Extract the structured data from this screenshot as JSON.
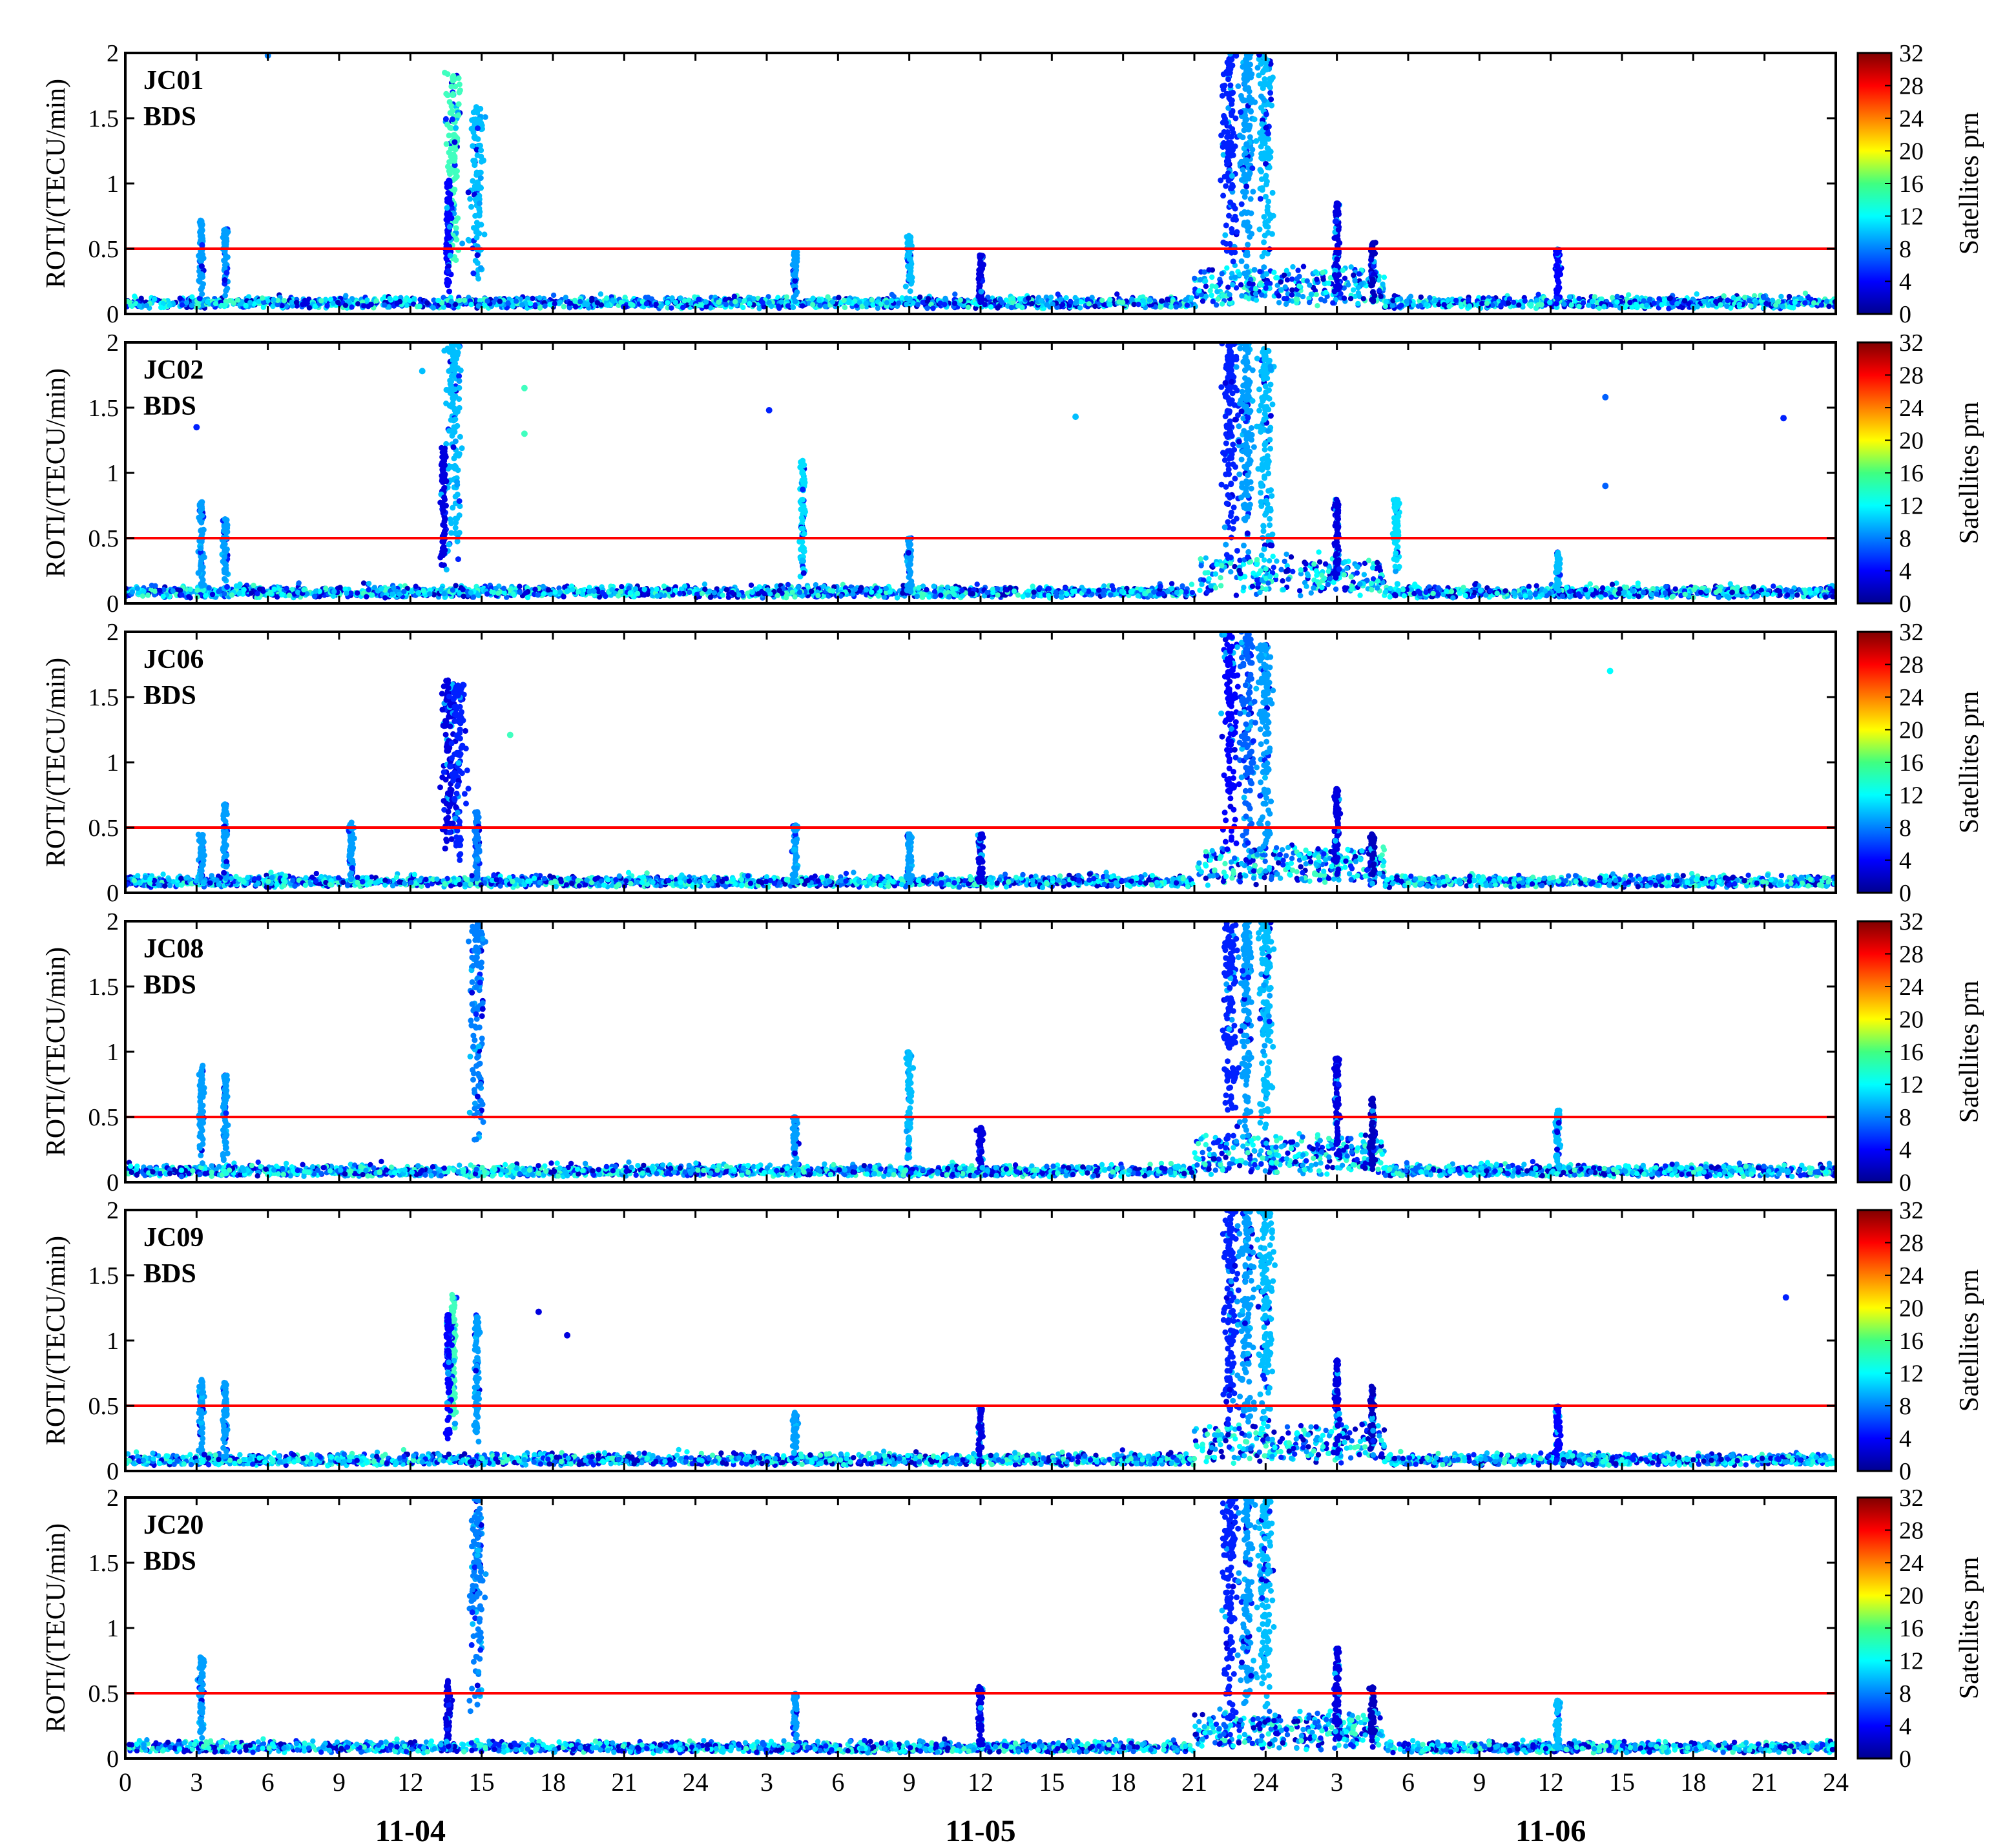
{
  "chart_data": {
    "type": "scatter",
    "threshold": 0.5,
    "threshold_color": "#ff0000",
    "x_unit": "hours (3 days, 72 h)",
    "xlim": [
      0,
      72
    ],
    "ylim": [
      0,
      2
    ],
    "ylabel": "ROTI/(TECU/min)",
    "xtick_labels": [
      "0",
      "3",
      "6",
      "9",
      "12",
      "15",
      "18",
      "21",
      "24",
      "3",
      "6",
      "9",
      "12",
      "15",
      "18",
      "21",
      "24",
      "3",
      "6",
      "9",
      "12",
      "15",
      "18",
      "21",
      "24"
    ],
    "ytick_labels": [
      "0",
      "0.5",
      "1",
      "1.5",
      "2"
    ],
    "date_labels": [
      "11-04",
      "11-05",
      "11-06"
    ],
    "colorbar": {
      "label": "Satellites prn",
      "range": [
        0,
        32
      ],
      "ticks": [
        "0",
        "4",
        "8",
        "12",
        "16",
        "20",
        "24",
        "28",
        "32"
      ],
      "colormap": "jet"
    },
    "panels": [
      {
        "station": "JC01",
        "system": "BDS",
        "features": [
          {
            "x": 3.2,
            "peak": 0.72,
            "prn": 9
          },
          {
            "x": 4.2,
            "peak": 0.65,
            "prn": 9
          },
          {
            "x": 13.8,
            "peak": 1.85,
            "prn": 14
          },
          {
            "x": 13.6,
            "peak": 1.05,
            "prn": 4
          },
          {
            "x": 14.8,
            "peak": 1.6,
            "prn": 10
          },
          {
            "x": 28.2,
            "peak": 0.48,
            "prn": 9
          },
          {
            "x": 33.0,
            "peak": 0.6,
            "prn": 10
          },
          {
            "x": 36.0,
            "peak": 0.45,
            "prn": 3
          },
          {
            "x": 46.5,
            "peak": 2.0,
            "prn": 5
          },
          {
            "x": 47.2,
            "peak": 2.0,
            "prn": 9
          },
          {
            "x": 48.0,
            "peak": 2.0,
            "prn": 10
          },
          {
            "x": 51.0,
            "peak": 0.85,
            "prn": 3
          },
          {
            "x": 52.5,
            "peak": 0.55,
            "prn": 2
          },
          {
            "x": 60.3,
            "peak": 0.5,
            "prn": 4
          }
        ],
        "outliers": [
          {
            "x": 6.0,
            "y": 1.98,
            "prn": 8
          }
        ]
      },
      {
        "station": "JC02",
        "system": "BDS",
        "features": [
          {
            "x": 3.2,
            "peak": 0.78,
            "prn": 9
          },
          {
            "x": 4.2,
            "peak": 0.65,
            "prn": 9
          },
          {
            "x": 13.8,
            "peak": 2.0,
            "prn": 10
          },
          {
            "x": 13.4,
            "peak": 1.2,
            "prn": 3
          },
          {
            "x": 28.5,
            "peak": 1.1,
            "prn": 11
          },
          {
            "x": 33.0,
            "peak": 0.5,
            "prn": 9
          },
          {
            "x": 46.5,
            "peak": 2.0,
            "prn": 5
          },
          {
            "x": 47.2,
            "peak": 2.0,
            "prn": 9
          },
          {
            "x": 48.0,
            "peak": 1.95,
            "prn": 10
          },
          {
            "x": 51.0,
            "peak": 0.8,
            "prn": 3
          },
          {
            "x": 53.5,
            "peak": 0.8,
            "prn": 11
          },
          {
            "x": 60.3,
            "peak": 0.4,
            "prn": 10
          }
        ],
        "outliers": [
          {
            "x": 3.0,
            "y": 1.35,
            "prn": 5
          },
          {
            "x": 12.5,
            "y": 1.78,
            "prn": 10
          },
          {
            "x": 16.8,
            "y": 1.65,
            "prn": 14
          },
          {
            "x": 16.8,
            "y": 1.3,
            "prn": 14
          },
          {
            "x": 27.1,
            "y": 1.48,
            "prn": 5
          },
          {
            "x": 40.0,
            "y": 1.43,
            "prn": 10
          },
          {
            "x": 62.3,
            "y": 1.58,
            "prn": 7
          },
          {
            "x": 62.3,
            "y": 0.9,
            "prn": 7
          },
          {
            "x": 69.8,
            "y": 1.42,
            "prn": 5
          }
        ]
      },
      {
        "station": "JC06",
        "system": "BDS",
        "features": [
          {
            "x": 3.2,
            "peak": 0.45,
            "prn": 9
          },
          {
            "x": 4.2,
            "peak": 0.68,
            "prn": 9
          },
          {
            "x": 9.5,
            "peak": 0.55,
            "prn": 9
          },
          {
            "x": 13.6,
            "peak": 1.65,
            "prn": 3
          },
          {
            "x": 14.0,
            "peak": 1.6,
            "prn": 5
          },
          {
            "x": 14.8,
            "peak": 0.62,
            "prn": 8
          },
          {
            "x": 28.2,
            "peak": 0.52,
            "prn": 9
          },
          {
            "x": 33.0,
            "peak": 0.45,
            "prn": 9
          },
          {
            "x": 36.0,
            "peak": 0.45,
            "prn": 3
          },
          {
            "x": 46.5,
            "peak": 2.0,
            "prn": 4
          },
          {
            "x": 47.2,
            "peak": 2.0,
            "prn": 7
          },
          {
            "x": 48.0,
            "peak": 1.9,
            "prn": 9
          },
          {
            "x": 51.0,
            "peak": 0.8,
            "prn": 3
          },
          {
            "x": 52.5,
            "peak": 0.45,
            "prn": 2
          }
        ],
        "outliers": [
          {
            "x": 16.2,
            "y": 1.21,
            "prn": 14
          },
          {
            "x": 62.5,
            "y": 1.7,
            "prn": 12
          }
        ]
      },
      {
        "station": "JC08",
        "system": "BDS",
        "features": [
          {
            "x": 3.2,
            "peak": 0.9,
            "prn": 9
          },
          {
            "x": 4.2,
            "peak": 0.82,
            "prn": 9
          },
          {
            "x": 14.8,
            "peak": 2.0,
            "prn": 8
          },
          {
            "x": 28.2,
            "peak": 0.52,
            "prn": 9
          },
          {
            "x": 33.0,
            "peak": 1.0,
            "prn": 10
          },
          {
            "x": 36.0,
            "peak": 0.42,
            "prn": 3
          },
          {
            "x": 46.5,
            "peak": 2.0,
            "prn": 5
          },
          {
            "x": 47.2,
            "peak": 2.0,
            "prn": 9
          },
          {
            "x": 48.0,
            "peak": 2.0,
            "prn": 10
          },
          {
            "x": 51.0,
            "peak": 0.95,
            "prn": 3
          },
          {
            "x": 52.5,
            "peak": 0.65,
            "prn": 2
          },
          {
            "x": 60.3,
            "peak": 0.55,
            "prn": 10
          }
        ],
        "outliers": []
      },
      {
        "station": "JC09",
        "system": "BDS",
        "features": [
          {
            "x": 3.2,
            "peak": 0.7,
            "prn": 9
          },
          {
            "x": 4.2,
            "peak": 0.68,
            "prn": 9
          },
          {
            "x": 13.8,
            "peak": 1.35,
            "prn": 14
          },
          {
            "x": 13.6,
            "peak": 1.2,
            "prn": 4
          },
          {
            "x": 14.8,
            "peak": 1.2,
            "prn": 9
          },
          {
            "x": 28.2,
            "peak": 0.45,
            "prn": 9
          },
          {
            "x": 36.0,
            "peak": 0.48,
            "prn": 3
          },
          {
            "x": 46.5,
            "peak": 2.0,
            "prn": 5
          },
          {
            "x": 47.2,
            "peak": 2.0,
            "prn": 9
          },
          {
            "x": 48.0,
            "peak": 2.0,
            "prn": 10
          },
          {
            "x": 51.0,
            "peak": 0.85,
            "prn": 3
          },
          {
            "x": 52.5,
            "peak": 0.65,
            "prn": 2
          },
          {
            "x": 60.3,
            "peak": 0.5,
            "prn": 4
          }
        ],
        "outliers": [
          {
            "x": 17.4,
            "y": 1.22,
            "prn": 3
          },
          {
            "x": 18.6,
            "y": 1.04,
            "prn": 3
          },
          {
            "x": 69.9,
            "y": 1.33,
            "prn": 5
          }
        ]
      },
      {
        "station": "JC20",
        "system": "BDS",
        "features": [
          {
            "x": 3.2,
            "peak": 0.78,
            "prn": 9
          },
          {
            "x": 13.6,
            "peak": 0.6,
            "prn": 3
          },
          {
            "x": 14.8,
            "peak": 2.0,
            "prn": 8
          },
          {
            "x": 28.2,
            "peak": 0.5,
            "prn": 9
          },
          {
            "x": 36.0,
            "peak": 0.55,
            "prn": 3
          },
          {
            "x": 46.5,
            "peak": 2.0,
            "prn": 5
          },
          {
            "x": 47.2,
            "peak": 2.0,
            "prn": 9
          },
          {
            "x": 48.0,
            "peak": 2.0,
            "prn": 10
          },
          {
            "x": 51.0,
            "peak": 0.85,
            "prn": 3
          },
          {
            "x": 52.5,
            "peak": 0.55,
            "prn": 2
          },
          {
            "x": 60.3,
            "peak": 0.45,
            "prn": 10
          }
        ],
        "outliers": []
      }
    ]
  }
}
